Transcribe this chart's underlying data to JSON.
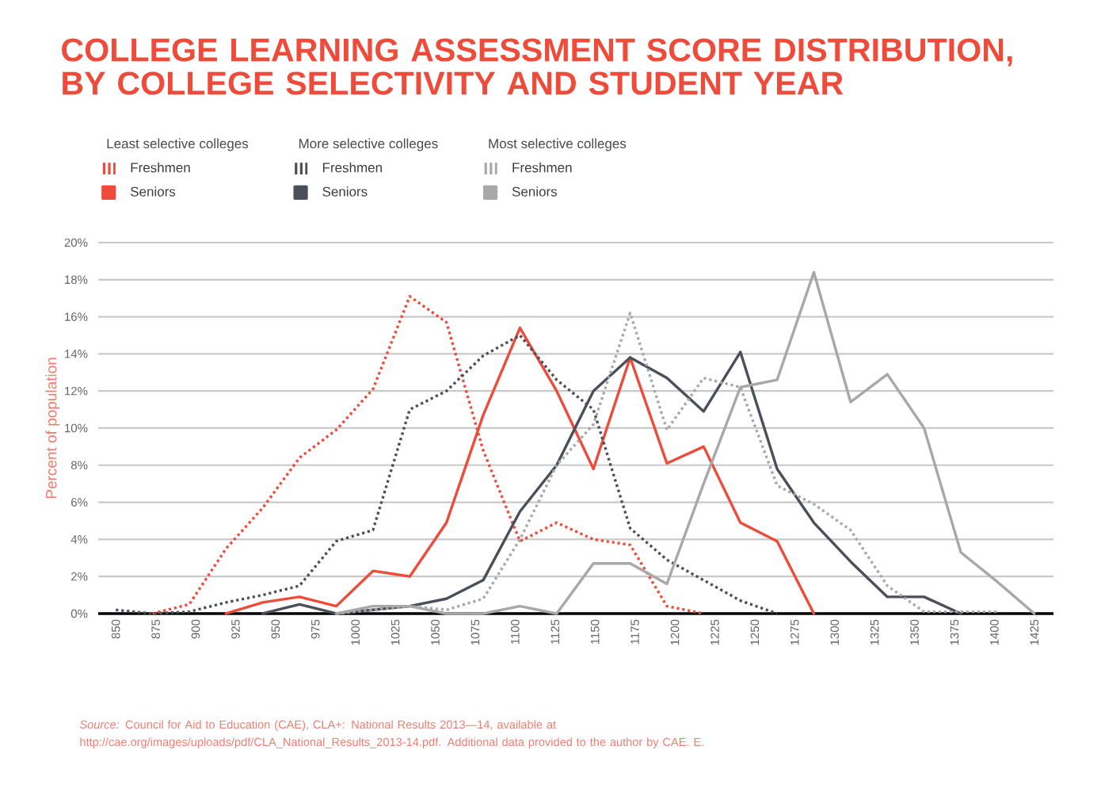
{
  "chart_data": {
    "type": "line",
    "title": "COLLEGE LEARNING ASSESSMENT SCORE DISTRIBUTION, BY COLLEGE SELECTIVITY AND STUDENT YEAR",
    "ylabel": "Percent of population",
    "annotations": [
      "Least selective colleges",
      "More selective colleges",
      "Most selective colleges",
      "*Source:* Council for Aid to Education (CAE), CLA+: National Results 2013—14, available at http://cae.org/images/uploads/pdf/CLA_National_Results_2013-14.pdf. Additional data provided to the author by CAE. E."
    ],
    "x": [
      850,
      873,
      896,
      919,
      942,
      965,
      988,
      1011,
      1034,
      1057,
      1080,
      1103,
      1126,
      1149,
      1172,
      1195,
      1218,
      1241,
      1264,
      1287,
      1310,
      1333,
      1356,
      1379,
      1402,
      1425
    ],
    "series": [
      {
        "name": "Freshmen",
        "color": "#ee4b3b",
        "line_style": "dotted",
        "values": [
          null,
          0,
          0.5,
          3.5,
          5.7,
          8.4,
          9.9,
          12.1,
          17.1,
          15.7,
          8.8,
          3.9,
          4.9,
          4.0,
          3.7,
          0.4,
          0,
          null,
          null,
          null,
          null,
          null,
          null,
          null,
          null,
          null
        ]
      },
      {
        "name": "Seniors",
        "color": "#ee4b3b",
        "line_style": "solid",
        "values": [
          null,
          null,
          null,
          0,
          0.6,
          0.9,
          0.4,
          2.3,
          2.0,
          4.9,
          10.7,
          15.4,
          12.0,
          7.8,
          13.8,
          8.1,
          9.0,
          4.9,
          3.9,
          0,
          null,
          null,
          null,
          null,
          null,
          null
        ]
      },
      {
        "name": "Freshmen",
        "color": "#4b4f5a",
        "line_style": "dotted",
        "values": [
          0.2,
          0,
          0.1,
          0.6,
          1.0,
          1.5,
          3.9,
          4.5,
          11.0,
          12.0,
          13.9,
          15.0,
          12.6,
          11.0,
          4.6,
          2.9,
          1.8,
          0.7,
          0,
          null,
          null,
          null,
          null,
          null,
          null,
          null
        ]
      },
      {
        "name": "Seniors",
        "color": "#4b4f5a",
        "line_style": "solid",
        "values": [
          null,
          null,
          null,
          null,
          0,
          0.5,
          0,
          0.2,
          0.4,
          0.8,
          1.8,
          5.5,
          8.0,
          12.0,
          13.8,
          12.7,
          10.9,
          14.1,
          7.8,
          4.9,
          2.8,
          0.9,
          0.9,
          0,
          null,
          null
        ]
      },
      {
        "name": "Freshmen",
        "color": "#a8a8a8",
        "line_style": "dotted",
        "values": [
          null,
          null,
          null,
          null,
          null,
          null,
          0,
          0.2,
          0.4,
          0.2,
          0.8,
          4.0,
          8.0,
          10.2,
          16.2,
          9.9,
          12.7,
          12.2,
          6.9,
          5.9,
          4.5,
          1.5,
          0.1,
          0.1,
          0.1,
          null
        ]
      },
      {
        "name": "Seniors",
        "color": "#a8a8a8",
        "line_style": "solid",
        "values": [
          null,
          null,
          null,
          null,
          null,
          null,
          0,
          0.4,
          0.4,
          0,
          0,
          0.4,
          0,
          2.7,
          2.7,
          1.6,
          7.0,
          12.2,
          12.6,
          18.4,
          11.4,
          12.9,
          10.0,
          3.3,
          1.7,
          0
        ]
      }
    ],
    "xlim": [
      839,
      1437
    ],
    "ylim": [
      0,
      20
    ],
    "xticks": [
      850,
      875,
      900,
      925,
      950,
      975,
      1000,
      1025,
      1050,
      1075,
      1100,
      1125,
      1150,
      1175,
      1200,
      1225,
      1250,
      1275,
      1300,
      1325,
      1350,
      1375,
      1400,
      1425
    ],
    "yticks": [
      {
        "value": 0,
        "label": "0%"
      },
      {
        "value": 2,
        "label": "2%"
      },
      {
        "value": 4,
        "label": "4%"
      },
      {
        "value": 6,
        "label": "6%"
      },
      {
        "value": 8,
        "label": "8%"
      },
      {
        "value": 10,
        "label": "10%"
      },
      {
        "value": 12,
        "label": "12%"
      },
      {
        "value": 14,
        "label": "14%"
      },
      {
        "value": 16,
        "label": "16%"
      },
      {
        "value": 18,
        "label": "18%"
      },
      {
        "value": 20,
        "label": "20%"
      }
    ],
    "grid": "y",
    "legend": "top left"
  }
}
